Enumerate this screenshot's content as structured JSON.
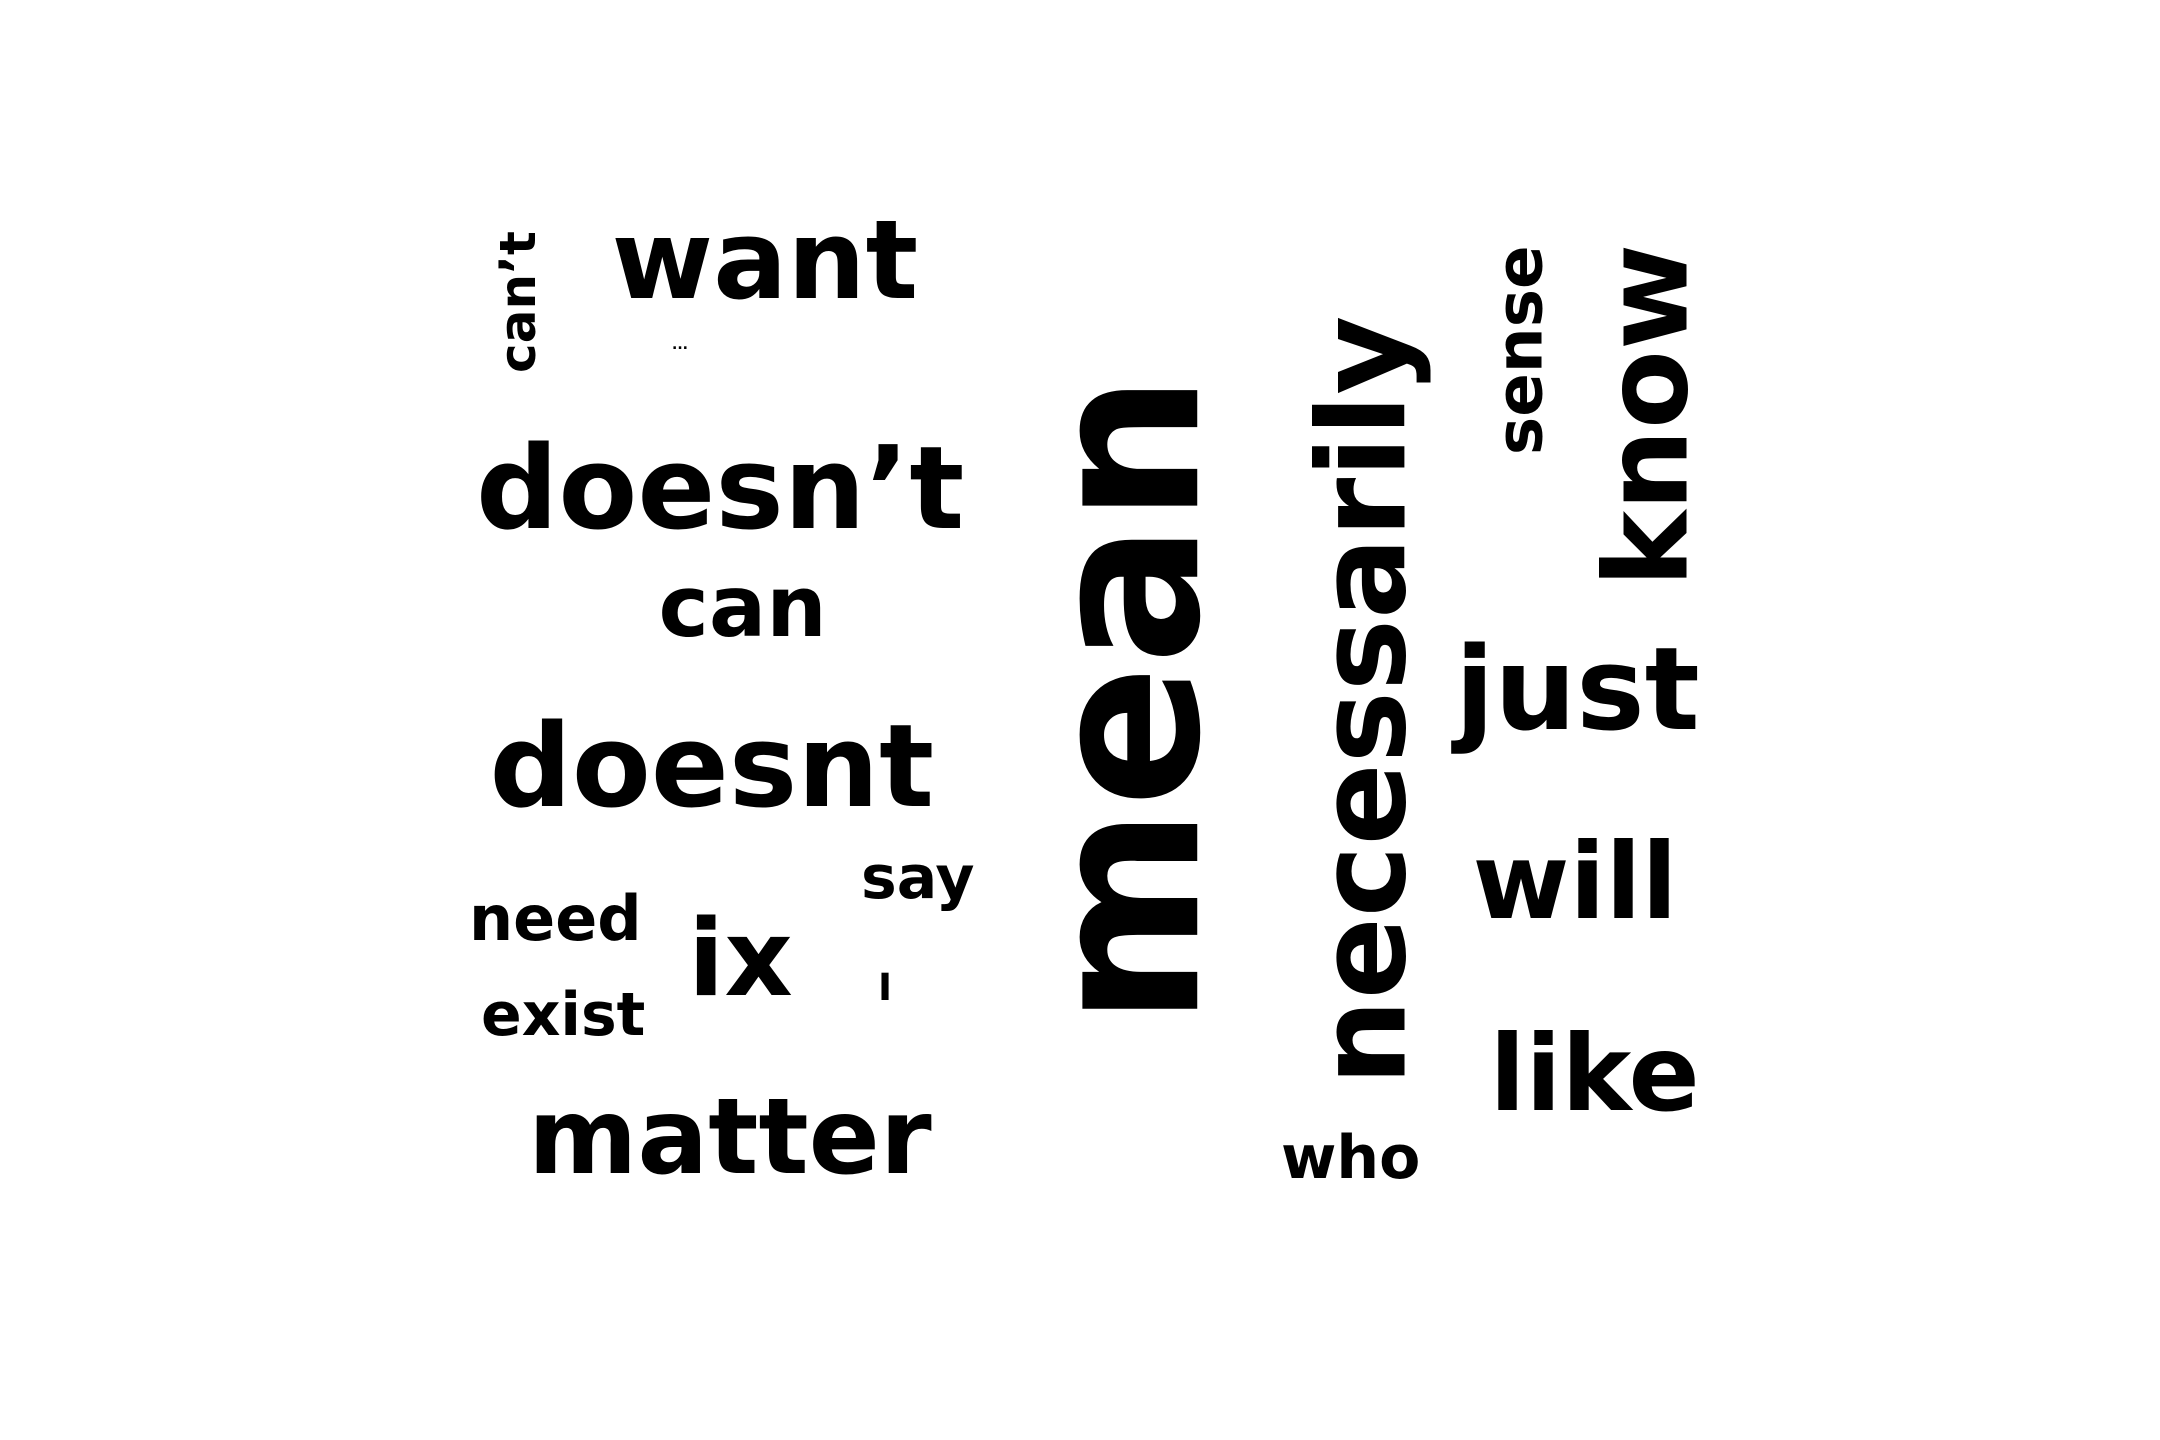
{
  "cloud": {
    "words": [
      {
        "text": "mean",
        "rotated": true
      },
      {
        "text": "necessarily",
        "rotated": true
      },
      {
        "text": "know",
        "rotated": true
      },
      {
        "text": "sense",
        "rotated": true
      },
      {
        "text": "can’t",
        "rotated": true
      },
      {
        "text": "want",
        "rotated": false
      },
      {
        "text": "...",
        "rotated": false
      },
      {
        "text": "doesn’t",
        "rotated": false
      },
      {
        "text": "can",
        "rotated": false
      },
      {
        "text": "doesnt",
        "rotated": false
      },
      {
        "text": "say",
        "rotated": false
      },
      {
        "text": "need",
        "rotated": false
      },
      {
        "text": "ix",
        "rotated": false
      },
      {
        "text": "I",
        "rotated": false
      },
      {
        "text": "exist",
        "rotated": false
      },
      {
        "text": "matter",
        "rotated": false
      },
      {
        "text": "just",
        "rotated": false
      },
      {
        "text": "will",
        "rotated": false
      },
      {
        "text": "like",
        "rotated": false
      },
      {
        "text": "who",
        "rotated": false
      }
    ]
  }
}
